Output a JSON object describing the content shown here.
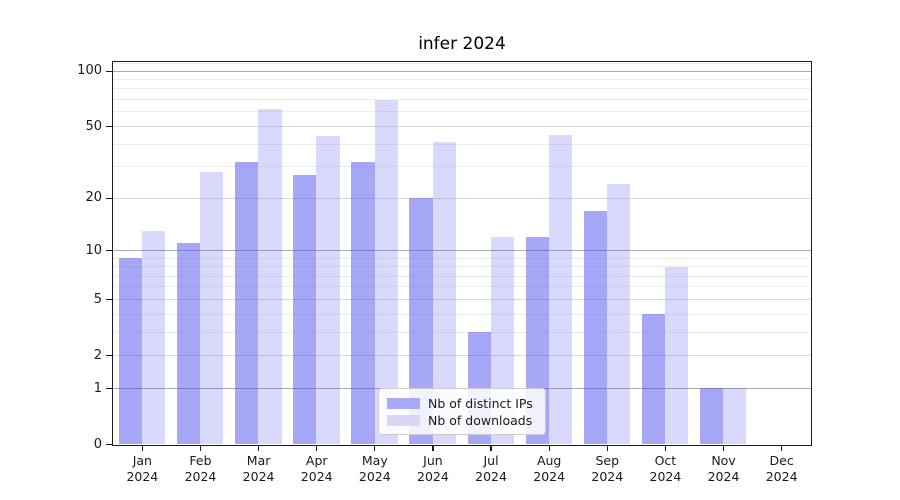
{
  "title": "infer 2024",
  "legend": {
    "items": [
      {
        "label": "Nb of distinct IPs",
        "color": "#a8a8f8"
      },
      {
        "label": "Nb of downloads",
        "color": "#d8d8f6"
      }
    ]
  },
  "chart_data": {
    "type": "bar",
    "title": "infer 2024",
    "x_categories": [
      {
        "month": "Jan",
        "year": "2024"
      },
      {
        "month": "Feb",
        "year": "2024"
      },
      {
        "month": "Mar",
        "year": "2024"
      },
      {
        "month": "Apr",
        "year": "2024"
      },
      {
        "month": "May",
        "year": "2024"
      },
      {
        "month": "Jun",
        "year": "2024"
      },
      {
        "month": "Jul",
        "year": "2024"
      },
      {
        "month": "Aug",
        "year": "2024"
      },
      {
        "month": "Sep",
        "year": "2024"
      },
      {
        "month": "Oct",
        "year": "2024"
      },
      {
        "month": "Nov",
        "year": "2024"
      },
      {
        "month": "Dec",
        "year": "2024"
      }
    ],
    "series": [
      {
        "name": "Nb of distinct IPs",
        "values": [
          9,
          11,
          32,
          27,
          32,
          20,
          3,
          12,
          17,
          4,
          1,
          0
        ],
        "fill": "rgba(80,80,240,0.50)"
      },
      {
        "name": "Nb of downloads",
        "values": [
          13,
          28,
          62,
          44,
          70,
          41,
          12,
          45,
          24,
          8,
          1,
          0
        ],
        "fill": "rgba(80,80,240,0.22)"
      }
    ],
    "yscale": "log1p",
    "ylim": [
      0,
      112
    ],
    "y_major_ticks": [
      0,
      1,
      2,
      5,
      10,
      20,
      50,
      100
    ],
    "y_minor_ticks": [
      3,
      4,
      6,
      7,
      8,
      9,
      30,
      40,
      60,
      70,
      80,
      90,
      110
    ],
    "grid": true,
    "legend_position": "lower center"
  }
}
